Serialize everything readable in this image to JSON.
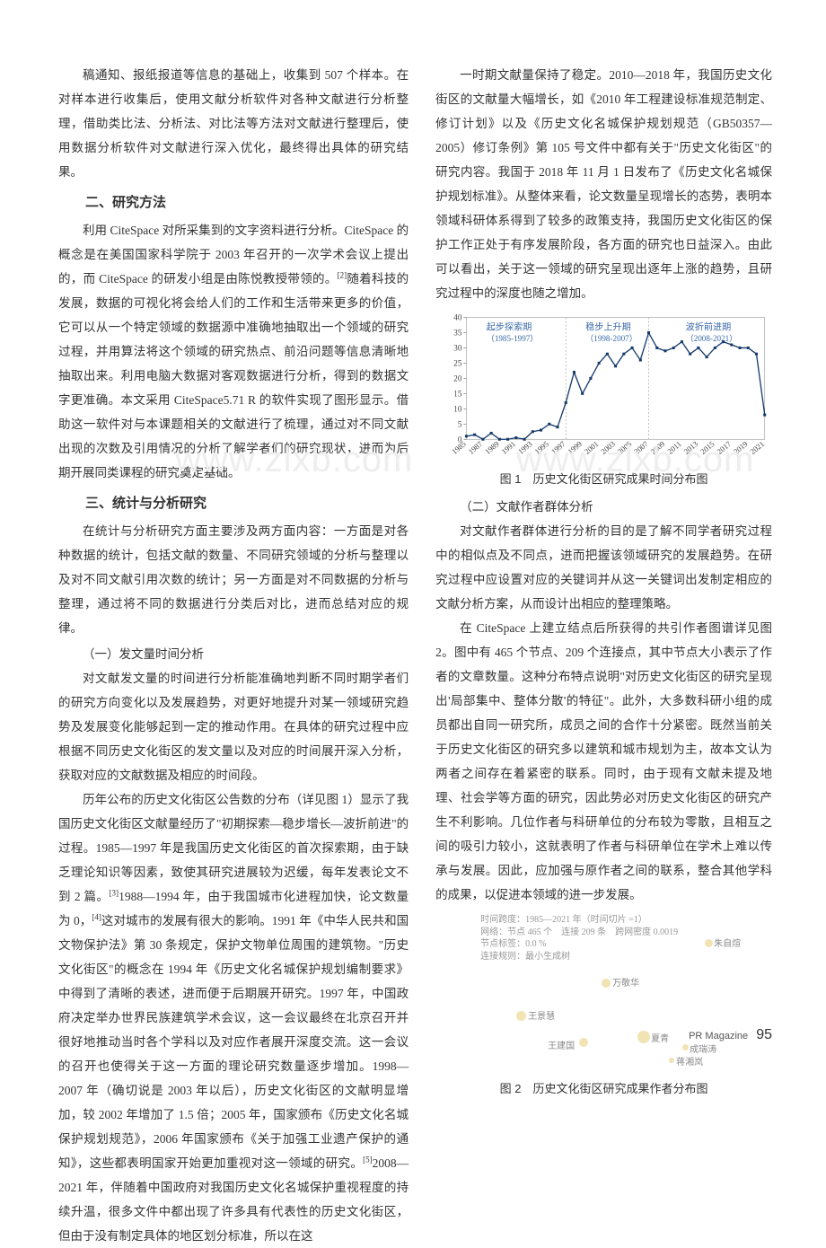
{
  "watermark": "www.zlxb.com",
  "left": {
    "p1": "稿通知、报纸报道等信息的基础上，收集到 507 个样本。在对样本进行收集后，使用文献分析软件对各种文献进行分析整理，借助类比法、分析法、对比法等方法对文献进行整理后，使用数据分析软件对文献进行深入优化，最终得出具体的研究结果。",
    "h2": "二、研究方法",
    "p2a": "利用 CiteSpace 对所采集到的文字资料进行分析。CiteSpace 的概念是在美国国家科学院于 2003 年召开的一次学术会议上提出的，而 CiteSpace 的研发小组是由陈悦教授带领的。",
    "p2b": "随着科技的发展，数据的可视化将会给人们的工作和生活带来更多的价值，它可以从一个特定领域的数据源中准确地抽取出一个领域的研究过程，并用算法将这个领域的研究热点、前沿问题等信息清晰地抽取出来。利用电脑大数据对客观数据进行分析，得到的数据文字更准确。本文采用 CiteSpace5.71 R 的软件实现了图形显示。借助这一软件对与本课题相关的文献进行了梳理，通过对不同文献出现的次数及引用情况的分析了解学者们的研究现状，进而为后期开展同类课程的研究奠定基础。",
    "h3": "三、统计与分析研究",
    "p3": "在统计与分析研究方面主要涉及两方面内容：一方面是对各种数据的统计，包括文献的数量、不同研究领域的分析与整理以及对不同文献引用次数的统计；另一方面是对不同数据的分析与整理，通过将不同的数据进行分类后对比，进而总结对应的规律。",
    "s31": "（一）发文量时间分析",
    "p4": "对文献发文量的时间进行分析能准确地判断不同时期学者们的研究方向变化以及发展趋势，对更好地提升对某一领域研究趋势及发展变化能够起到一定的推动作用。在具体的研究过程中应根据不同历史文化街区的发文量以及对应的时间展开深入分析，获取对应的文献数据及相应的时间段。",
    "p5a": "历年公布的历史文化街区公告数的分布（详见图 1）显示了我国历史文化街区文献量经历了\"初期探索—稳步增长—波折前进\"的过程。1985—1997 年是我国历史文化街区的首次探索期，由于缺乏理论知识等因素，致使其研究进展较为迟缓，每年发表论文不到 2 篇。",
    "p5b": "1988—1994 年，由于我国城市化进程加快，论文数量为 0，",
    "p5c": "这对城市的发展有很大的影响。1991 年《中华人民共和国文物保护法》第 30 条规定，保护文物单位周围的建筑物。\"历史文化街区\"的概念在 1994 年《历史文化名城保护规划编制要求》中得到了清晰的表述，进而便于后期展开研究。1997 年，中国政府决定举办世界民族建筑学术会议，这一会议最终在北京召开并很好地推动当时各个学科以及对应作者展开深度交流。这一会议的召开也使得关于这一方面的理论研究数量逐步增加。1998—2007 年（确切说是 2003 年以后），历史文化街区的文献明显增加，较 2002 年增加了 1.5 倍；2005 年，国家颁布《历史文化名城保护规划规范》，2006 年国家颁布《关于加强工业遗产保护的通知》，这些都表明国家开始更加重视对这一领域的研究。",
    "p5d": "2008—2021 年，伴随着中国政府对我国历史文化名城保护重视程度的持续升温，很多文件中都出现了许多具有代表性的历史文化街区，但由于没有制定具体的地区划分标准，所以在这",
    "sup2": "[2]",
    "sup3": "[3]",
    "sup4": "[4]",
    "sup5": "[5]"
  },
  "right": {
    "p1": "一时期文献量保持了稳定。2010—2018 年，我国历史文化街区的文献量大幅增长，如《2010 年工程建设标准规范制定、修订计划》以及《历史文化名城保护规划规范（GB50357—2005）修订条例》第 105 号文件中都有关于\"历史文化街区\"的研究内容。我国于 2018 年 11 月 1 日发布了《历史文化名城保护规划标准》。从整体来看，论文数量呈现增长的态势，表明本领域科研体系得到了较多的政策支持，我国历史文化街区的保护工作正处于有序发展阶段，各方面的研究也日益深入。由此可以看出，关于这一领域的研究呈现出逐年上涨的趋势，且研究过程中的深度也随之增加。",
    "fig1cap": "图 1　历史文化街区研究成果时间分布图",
    "s32": "（二）文献作者群体分析",
    "p2": "对文献作者群体进行分析的目的是了解不同学者研究过程中的相似点及不同点，进而把握该领域研究的发展趋势。在研究过程中应设置对应的关键词并从这一关键词出发制定相应的文献分析方案，从而设计出相应的整理策略。",
    "p3": "在 CiteSpace 上建立结点后所获得的共引作者图谱详见图 2。图中有 465 个节点、209 个连接点，其中节点大小表示了作者的文章数量。这种分布特点说明\"对历史文化街区的研究呈现出'局部集中、整体分散'的特征\"。此外，大多数科研小组的成员都出自同一研究所，成员之间的合作十分紧密。既然当前关于历史文化街区的研究多以建筑和城市规划为主，故本文认为两者之间存在着紧密的联系。同时，由于现有文献未提及地理、社会学等方面的研究，因此势必对历史文化街区的研究产生不利影响。几位作者与科研单位的分布较为零散，且相互之间的吸引力较小，这就表明了作者与科研单位在学术上难以传承与发展。因此，应加强与原作者之间的联系，整合其他学科的成果，以促进本领域的进一步发展。",
    "fig2cap": "图 2　历史文化街区研究成果作者分布图",
    "network_meta": {
      "l1": "时间跨度：1985—2021 年（时间切片 =1）",
      "l2": "网络：节点 465 个　连接 209 条　跨网密度 0.0019",
      "l3": "节点标签：0.0  %",
      "l4": "连接规则：最小生成树"
    },
    "network_nodes": [
      "朱自煊",
      "万敬华",
      "王景慧",
      "王建国",
      "夏青",
      "成瑞涛",
      "蒋湘岚"
    ]
  },
  "chart": {
    "periods": [
      {
        "label": "起步探索期",
        "range": "（1985-1997）",
        "x": 56,
        "color": "#3a6aa8"
      },
      {
        "label": "稳步上升期",
        "range": "（1998-2007）",
        "x": 165,
        "color": "#3a6aa8"
      },
      {
        "label": "波折前进期",
        "range": "（2008-2021）",
        "x": 275,
        "color": "#3a6aa8"
      }
    ],
    "ylabel_ticks": [
      0,
      5,
      10,
      15,
      20,
      25,
      30,
      35,
      40
    ],
    "ylim": [
      0,
      40
    ],
    "years": [
      "1985",
      "1987",
      "1989",
      "1991",
      "1993",
      "1995",
      "1997",
      "1999",
      "2001",
      "2003",
      "2005",
      "2007",
      "2009",
      "2011",
      "2013",
      "2015",
      "2017",
      "2019",
      "2021"
    ],
    "values": [
      1,
      1.5,
      0,
      2,
      0,
      0,
      0.5,
      0,
      2.5,
      3,
      5,
      4,
      12,
      22,
      15,
      20,
      25,
      28,
      24,
      28,
      30,
      26,
      35,
      30,
      29,
      30,
      32,
      28,
      30,
      27,
      30,
      32,
      31,
      30,
      30,
      28,
      8
    ],
    "line_color": "#153a6b",
    "background": "#ffffff",
    "grid_color": "#e0e0e0"
  },
  "footer": {
    "mag": "PR Magazine",
    "page": "95"
  }
}
